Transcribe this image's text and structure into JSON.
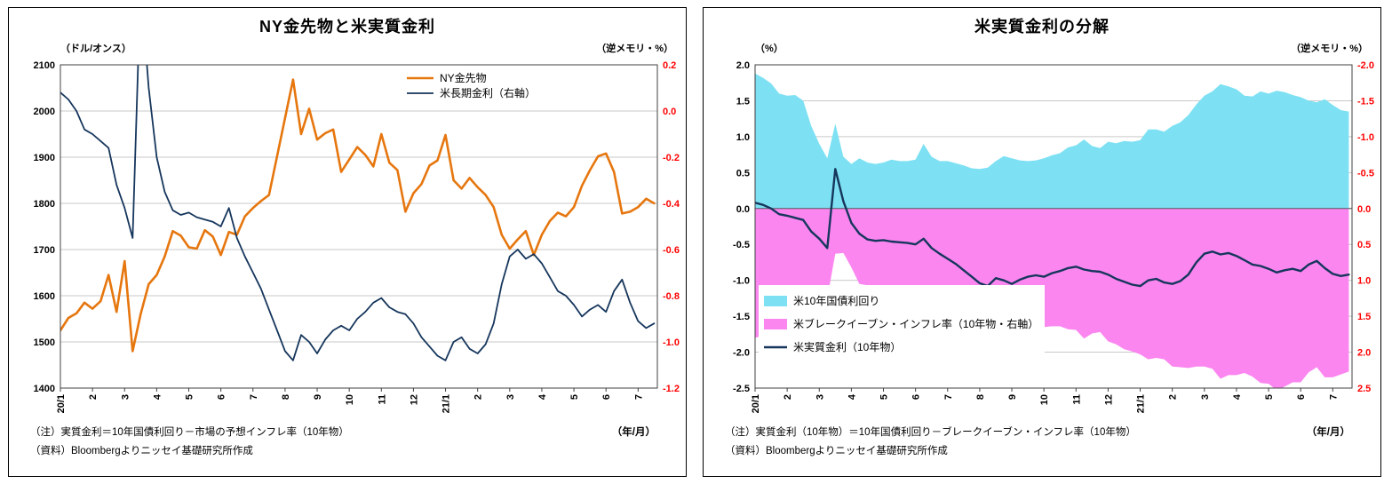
{
  "chart_data": [
    {
      "type": "line",
      "title": "NY金先物と米実質金利",
      "unit_left": "（ドル/オンス）",
      "unit_right": "（逆メモリ・%）",
      "x_axis_unit": "（年/月）",
      "notes": [
        "（注）実質金利＝10年国債利回り－市場の予想インフレ率（10年物）",
        "（資料）Bloombergよりニッセイ基礎研究所作成"
      ],
      "x": {
        "tick_labels": [
          "20/1",
          "2",
          "3",
          "4",
          "5",
          "6",
          "7",
          "8",
          "9",
          "10",
          "11",
          "12",
          "21/1",
          "2",
          "3",
          "4",
          "5",
          "6",
          "7"
        ],
        "point_step_months": 0.25,
        "axis_span_months": 18.6
      },
      "y_left": {
        "min": 1400,
        "max": 2100,
        "tick_labels": [
          "2100",
          "2000",
          "1900",
          "1800",
          "1700",
          "1600",
          "1500",
          "1400"
        ]
      },
      "y_right": {
        "min": -1.2,
        "max": 0.2,
        "color": "#ff0000",
        "tick_labels": [
          "0.2",
          "0.0",
          "-0.2",
          "-0.4",
          "-0.6",
          "-0.8",
          "-1.0",
          "-1.2"
        ]
      },
      "series": [
        {
          "name": "NY金先物",
          "type": "line",
          "axis": "left",
          "color": "#e6760e",
          "width": 2.6,
          "values": [
            1525,
            1552,
            1562,
            1585,
            1572,
            1588,
            1645,
            1565,
            1675,
            1480,
            1560,
            1625,
            1645,
            1685,
            1740,
            1730,
            1705,
            1702,
            1742,
            1728,
            1688,
            1738,
            1732,
            1772,
            1790,
            1805,
            1818,
            1902,
            1985,
            2068,
            1950,
            2005,
            1938,
            1952,
            1960,
            1868,
            1895,
            1922,
            1905,
            1880,
            1950,
            1888,
            1872,
            1782,
            1822,
            1842,
            1882,
            1893,
            1948,
            1850,
            1832,
            1855,
            1835,
            1818,
            1792,
            1732,
            1702,
            1722,
            1740,
            1688,
            1732,
            1762,
            1780,
            1772,
            1792,
            1838,
            1872,
            1902,
            1908,
            1868,
            1778,
            1782,
            1792,
            1810,
            1800
          ]
        },
        {
          "name": "米長期金利（右軸）",
          "type": "line",
          "axis": "right",
          "color": "#16365c",
          "width": 1.8,
          "values": [
            0.08,
            0.05,
            0.0,
            -0.08,
            -0.1,
            -0.13,
            -0.16,
            -0.32,
            -0.42,
            -0.55,
            0.55,
            0.1,
            -0.2,
            -0.35,
            -0.43,
            -0.45,
            -0.44,
            -0.46,
            -0.47,
            -0.48,
            -0.5,
            -0.42,
            -0.55,
            -0.63,
            -0.7,
            -0.77,
            -0.86,
            -0.95,
            -1.04,
            -1.08,
            -0.97,
            -1.0,
            -1.05,
            -0.99,
            -0.95,
            -0.93,
            -0.95,
            -0.9,
            -0.87,
            -0.83,
            -0.81,
            -0.85,
            -0.87,
            -0.88,
            -0.92,
            -0.98,
            -1.02,
            -1.06,
            -1.08,
            -1.0,
            -0.98,
            -1.03,
            -1.05,
            -1.01,
            -0.92,
            -0.75,
            -0.63,
            -0.6,
            -0.64,
            -0.62,
            -0.66,
            -0.72,
            -0.78,
            -0.8,
            -0.84,
            -0.89,
            -0.86,
            -0.84,
            -0.87,
            -0.78,
            -0.73,
            -0.83,
            -0.91,
            -0.94,
            -0.92
          ]
        }
      ]
    },
    {
      "type": "combo",
      "title": "米実質金利の分解",
      "unit_left": "（%）",
      "unit_right": "（逆メモリ・%）",
      "x_axis_unit": "（年/月）",
      "zero_line": true,
      "notes": [
        "（注）実質金利（10年物）＝10年国債利回り－ブレークイーブン・インフレ率（10年物）",
        "（資料）Bloombergよりニッセイ基礎研究所作成"
      ],
      "x": {
        "tick_labels": [
          "20/1",
          "2",
          "3",
          "4",
          "5",
          "6",
          "7",
          "8",
          "9",
          "10",
          "11",
          "12",
          "21/1",
          "2",
          "3",
          "4",
          "5",
          "6",
          "7"
        ],
        "point_step_months": 0.25,
        "axis_span_months": 18.6
      },
      "y_left": {
        "min": -2.5,
        "max": 2.0,
        "tick_labels": [
          "2.0",
          "1.5",
          "1.0",
          "0.5",
          "0.0",
          "-0.5",
          "-1.0",
          "-1.5",
          "-2.0",
          "-2.5"
        ]
      },
      "y_right": {
        "inverted": true,
        "top": -2.0,
        "bottom": 2.5,
        "color": "#ff0000",
        "tick_labels": [
          "-2.0",
          "-1.5",
          "-1.0",
          "-0.5",
          "0.0",
          "0.5",
          "1.0",
          "1.5",
          "2.0",
          "2.5"
        ]
      },
      "series": [
        {
          "name": "米10年国債利回り",
          "type": "area",
          "axis": "left",
          "baseline": 0,
          "color": "#7de1f3",
          "values": [
            1.88,
            1.82,
            1.74,
            1.6,
            1.57,
            1.58,
            1.5,
            1.15,
            0.9,
            0.7,
            1.18,
            0.72,
            0.62,
            0.7,
            0.64,
            0.62,
            0.64,
            0.68,
            0.66,
            0.66,
            0.68,
            0.9,
            0.72,
            0.66,
            0.66,
            0.63,
            0.6,
            0.56,
            0.55,
            0.57,
            0.66,
            0.73,
            0.7,
            0.67,
            0.66,
            0.67,
            0.7,
            0.74,
            0.77,
            0.85,
            0.88,
            0.96,
            0.87,
            0.84,
            0.93,
            0.91,
            0.94,
            0.93,
            0.95,
            1.1,
            1.1,
            1.07,
            1.15,
            1.2,
            1.3,
            1.45,
            1.57,
            1.63,
            1.73,
            1.7,
            1.66,
            1.57,
            1.56,
            1.63,
            1.6,
            1.64,
            1.62,
            1.58,
            1.55,
            1.5,
            1.48,
            1.52,
            1.44,
            1.37,
            1.35
          ]
        },
        {
          "name": "米ブレークイーブン・インフレ率（10年物・右軸）",
          "type": "area",
          "axis": "right",
          "baseline": 0,
          "color": "#fb86f0",
          "values": [
            1.8,
            1.77,
            1.74,
            1.68,
            1.67,
            1.71,
            1.66,
            1.47,
            1.32,
            1.25,
            0.63,
            0.62,
            0.82,
            1.05,
            1.07,
            1.07,
            1.08,
            1.14,
            1.13,
            1.14,
            1.18,
            1.32,
            1.27,
            1.29,
            1.36,
            1.4,
            1.46,
            1.51,
            1.59,
            1.65,
            1.63,
            1.73,
            1.75,
            1.66,
            1.61,
            1.6,
            1.65,
            1.64,
            1.64,
            1.68,
            1.69,
            1.81,
            1.74,
            1.72,
            1.85,
            1.89,
            1.96,
            1.99,
            2.03,
            2.1,
            2.08,
            2.1,
            2.2,
            2.21,
            2.22,
            2.2,
            2.2,
            2.23,
            2.37,
            2.32,
            2.32,
            2.29,
            2.34,
            2.43,
            2.44,
            2.53,
            2.48,
            2.42,
            2.42,
            2.28,
            2.21,
            2.35,
            2.35,
            2.31,
            2.27
          ]
        },
        {
          "name": "米実質金利（10年物）",
          "type": "line",
          "axis": "left",
          "color": "#16365c",
          "width": 2.4,
          "values": [
            0.08,
            0.05,
            0.0,
            -0.08,
            -0.1,
            -0.13,
            -0.16,
            -0.32,
            -0.42,
            -0.55,
            0.55,
            0.1,
            -0.2,
            -0.35,
            -0.43,
            -0.45,
            -0.44,
            -0.46,
            -0.47,
            -0.48,
            -0.5,
            -0.42,
            -0.55,
            -0.63,
            -0.7,
            -0.77,
            -0.86,
            -0.95,
            -1.04,
            -1.08,
            -0.97,
            -1.0,
            -1.05,
            -0.99,
            -0.95,
            -0.93,
            -0.95,
            -0.9,
            -0.87,
            -0.83,
            -0.81,
            -0.85,
            -0.87,
            -0.88,
            -0.92,
            -0.98,
            -1.02,
            -1.06,
            -1.08,
            -1.0,
            -0.98,
            -1.03,
            -1.05,
            -1.01,
            -0.92,
            -0.75,
            -0.63,
            -0.6,
            -0.64,
            -0.62,
            -0.66,
            -0.72,
            -0.78,
            -0.8,
            -0.84,
            -0.89,
            -0.86,
            -0.84,
            -0.87,
            -0.78,
            -0.73,
            -0.83,
            -0.91,
            -0.94,
            -0.92
          ]
        }
      ]
    }
  ]
}
